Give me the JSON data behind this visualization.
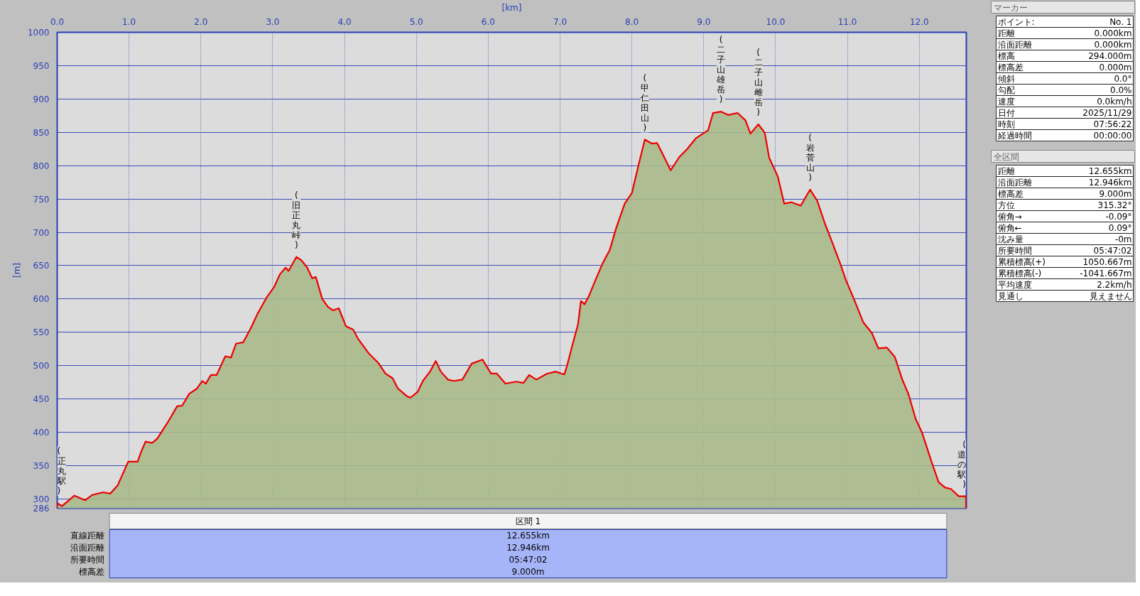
{
  "chart_data": [
    {
      "type": "area",
      "xlabel": "[km]",
      "ylabel": "[m]",
      "xlim": [
        0,
        12.655
      ],
      "ylim": [
        286,
        1000
      ],
      "xticks": [
        {
          "value": 0,
          "label": "0.0"
        },
        {
          "value": 1,
          "label": "1.0"
        },
        {
          "value": 2,
          "label": "2.0"
        },
        {
          "value": 3,
          "label": "3.0"
        },
        {
          "value": 4,
          "label": "4.0"
        },
        {
          "value": 5,
          "label": "5.0"
        },
        {
          "value": 6,
          "label": "6.0"
        },
        {
          "value": 7,
          "label": "7.0"
        },
        {
          "value": 8,
          "label": "8.0"
        },
        {
          "value": 9,
          "label": "9.0"
        },
        {
          "value": 10,
          "label": "10.0"
        },
        {
          "value": 11,
          "label": "11.0"
        },
        {
          "value": 12,
          "label": "12.0"
        }
      ],
      "yticks": [
        286,
        300,
        350,
        400,
        450,
        500,
        550,
        600,
        650,
        700,
        750,
        800,
        850,
        900,
        950,
        1000
      ],
      "grid": true,
      "x": [
        0,
        0.065,
        0.24,
        0.39,
        0.49,
        0.64,
        0.74,
        0.84,
        0.99,
        1.12,
        1.17,
        1.23,
        1.32,
        1.39,
        1.54,
        1.67,
        1.74,
        1.84,
        1.94,
        2.02,
        2.07,
        2.14,
        2.22,
        2.34,
        2.42,
        2.49,
        2.59,
        2.69,
        2.79,
        2.92,
        3.02,
        3.1,
        3.18,
        3.22,
        3.33,
        3.4,
        3.48,
        3.55,
        3.6,
        3.69,
        3.77,
        3.84,
        3.92,
        4.02,
        4.12,
        4.19,
        4.34,
        4.47,
        4.57,
        4.67,
        4.74,
        4.87,
        4.92,
        5.02,
        5.09,
        5.19,
        5.27,
        5.34,
        5.44,
        5.52,
        5.64,
        5.77,
        5.92,
        6.04,
        6.12,
        6.24,
        6.39,
        6.49,
        6.57,
        6.67,
        6.82,
        6.94,
        7.02,
        7.06,
        7.1,
        7.17,
        7.25,
        7.29,
        7.34,
        7.4,
        7.48,
        7.59,
        7.69,
        7.78,
        7.9,
        8.0,
        8.09,
        8.18,
        8.28,
        8.35,
        8.43,
        8.54,
        8.66,
        8.77,
        8.89,
        9.06,
        9.13,
        9.24,
        9.34,
        9.47,
        9.58,
        9.65,
        9.76,
        9.85,
        9.91,
        10.03,
        10.12,
        10.22,
        10.35,
        10.48,
        10.58,
        10.69,
        10.77,
        10.9,
        10.98,
        11.09,
        11.22,
        11.34,
        11.43,
        11.55,
        11.66,
        11.76,
        11.85,
        11.95,
        12.04,
        12.17,
        12.27,
        12.36,
        12.44,
        12.55,
        12.65
      ],
      "series": [
        {
          "color": "#ee0000",
          "values": [
            294,
            289,
            305,
            298,
            306,
            310,
            308,
            320,
            356,
            356,
            371,
            386,
            384,
            390,
            415,
            439,
            440,
            458,
            465,
            477,
            473,
            486,
            486,
            514,
            512,
            533,
            535,
            555,
            578,
            603,
            618,
            637,
            647,
            642,
            663,
            658,
            647,
            631,
            633,
            600,
            588,
            583,
            586,
            559,
            554,
            540,
            518,
            504,
            488,
            481,
            466,
            454,
            452,
            461,
            477,
            491,
            507,
            491,
            479,
            477,
            479,
            503,
            509,
            488,
            488,
            473,
            476,
            474,
            486,
            479,
            488,
            491,
            488,
            487,
            501,
            530,
            562,
            597,
            592,
            604,
            625,
            653,
            673,
            706,
            743,
            759,
            800,
            839,
            833,
            834,
            817,
            793,
            813,
            825,
            841,
            853,
            879,
            881,
            876,
            879,
            868,
            848,
            862,
            849,
            812,
            784,
            743,
            745,
            740,
            764,
            747,
            712,
            690,
            653,
            628,
            600,
            565,
            549,
            526,
            527,
            513,
            480,
            457,
            420,
            399,
            356,
            325,
            317,
            315,
            304,
            304
          ]
        }
      ],
      "annotations": [
        {
          "text": "(正丸駅)",
          "x": 0,
          "y": 294
        },
        {
          "text": "(旧正丸峠)",
          "x": 3.33,
          "y": 663
        },
        {
          "text": "(甲仁田山)",
          "x": 8.18,
          "y": 839
        },
        {
          "text": "(二子山雄岳)",
          "x": 9.24,
          "y": 881
        },
        {
          "text": "(二子山雌岳)",
          "x": 9.76,
          "y": 862
        },
        {
          "text": "(岩菅山)",
          "x": 10.48,
          "y": 764
        },
        {
          "text": "(道の駅)",
          "x": 12.65,
          "y": 304
        }
      ]
    },
    {
      "type": "other",
      "title": "マーカー",
      "annotations": [
        "ポイント:",
        "No. 1",
        "距離",
        "0.000km",
        "沿面距離",
        "0.000km",
        "標高",
        "294.000m",
        "標高差",
        "0.000m",
        "傾斜",
        "0.0°",
        "勾配",
        "0.0%",
        "速度",
        "0.0km/h",
        "日付",
        "2025/11/29",
        "時刻",
        "07:56:22",
        "経過時間",
        "00:00:00"
      ]
    },
    {
      "type": "other",
      "title": "全区間",
      "annotations": [
        "距離",
        "12.655km",
        "沿面距離",
        "12.946km",
        "標高差",
        "9.000m",
        "方位",
        "315.32°",
        "俯角→",
        "-0.09°",
        "俯角←",
        "0.09°",
        "沈み量",
        "-0m",
        "所要時間",
        "05:47:02",
        "累積標高(+)",
        "1050.667m",
        "累積標高(-)",
        "-1041.667m",
        "平均速度",
        "2.2km/h",
        "見通し",
        "見えません"
      ]
    },
    {
      "type": "other",
      "title": "区間 1",
      "annotations": [
        "直線距離",
        "12.655km",
        "沿面距離",
        "12.946km",
        "所要時間",
        "05:47:02",
        "標高差",
        "9.000m"
      ]
    }
  ]
}
